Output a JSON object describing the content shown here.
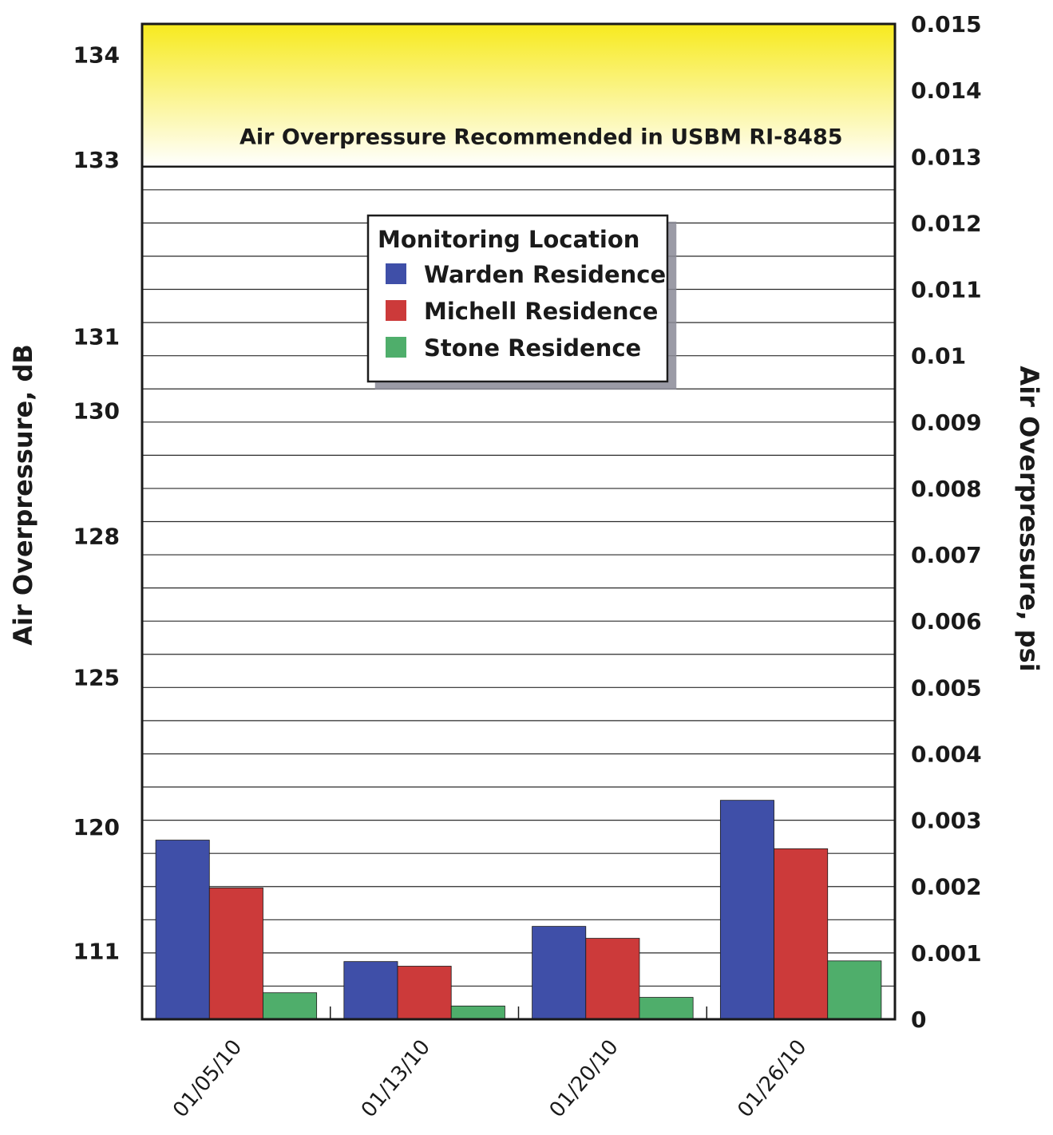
{
  "chart_data": {
    "type": "bar",
    "categories": [
      "01/05/10",
      "01/13/10",
      "01/20/10",
      "01/26/10"
    ],
    "series": [
      {
        "name": "Warden Residence",
        "color": "#3f4fa8",
        "values": [
          0.0027,
          0.00087,
          0.0014,
          0.0033
        ]
      },
      {
        "name": "Michell Residence",
        "color": "#cc3a3a",
        "values": [
          0.00198,
          0.0008,
          0.00122,
          0.00257
        ]
      },
      {
        "name": "Stone Residence",
        "color": "#4fae6b",
        "values": [
          0.0004,
          0.0002,
          0.00033,
          0.00088
        ]
      }
    ],
    "legend": {
      "title": "Monitoring Location",
      "placement": "top-center"
    },
    "ylabel_left": "Air Overpressure, dB",
    "ylabel_right": "Air Overpressure, psi",
    "yticks_right": [
      "0",
      "0.001",
      "0.002",
      "0.003",
      "0.004",
      "0.005",
      "0.006",
      "0.007",
      "0.008",
      "0.009",
      "0.01",
      "0.011",
      "0.012",
      "0.013",
      "0.014",
      "0.015"
    ],
    "yticks_left": [
      "111",
      "120",
      "125",
      "128",
      "130",
      "131",
      "133",
      "134"
    ],
    "ylim": [
      0,
      0.015
    ],
    "grid": true,
    "threshold": {
      "label": "Air Overpressure Recommended in USBM RI-8485",
      "from": 0.01285,
      "to": 0.015,
      "color_top": "#f7ea1e",
      "color_bottom": "#ffffff"
    }
  }
}
